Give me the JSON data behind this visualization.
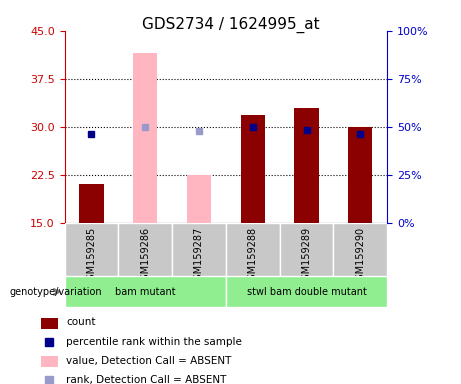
{
  "title": "GDS2734 / 1624995_at",
  "samples": [
    "GSM159285",
    "GSM159286",
    "GSM159287",
    "GSM159288",
    "GSM159289",
    "GSM159290"
  ],
  "ylim_left": [
    15,
    45
  ],
  "ylim_right": [
    0,
    100
  ],
  "yticks_left": [
    15,
    22.5,
    30,
    37.5,
    45
  ],
  "yticks_right": [
    0,
    25,
    50,
    75,
    100
  ],
  "count_values": [
    21.0,
    41.5,
    22.5,
    31.8,
    33.0,
    30.0
  ],
  "count_absent": [
    false,
    true,
    true,
    false,
    false,
    false
  ],
  "rank_values": [
    28.8,
    30.0,
    29.4,
    30.0,
    29.5,
    28.8
  ],
  "rank_absent": [
    false,
    true,
    true,
    false,
    false,
    false
  ],
  "bar_bottom": 15,
  "bar_color_present": "#8B0000",
  "bar_color_absent": "#FFB6C1",
  "dot_color_present": "#00008B",
  "dot_color_absent": "#9999CC",
  "grid_color": "black",
  "axis_color_left": "#CC0000",
  "axis_color_right": "#0000CC",
  "legend_items": [
    {
      "label": "count",
      "color": "#8B0000",
      "type": "bar"
    },
    {
      "label": "percentile rank within the sample",
      "color": "#00008B",
      "type": "dot"
    },
    {
      "label": "value, Detection Call = ABSENT",
      "color": "#FFB6C1",
      "type": "bar"
    },
    {
      "label": "rank, Detection Call = ABSENT",
      "color": "#9999CC",
      "type": "dot"
    }
  ],
  "genotype_label": "genotype/variation",
  "sample_area_color": "#C8C8C8",
  "group_ranges": [
    [
      0,
      2
    ],
    [
      3,
      5
    ]
  ],
  "group_labels": [
    "bam mutant",
    "stwl bam double mutant"
  ]
}
